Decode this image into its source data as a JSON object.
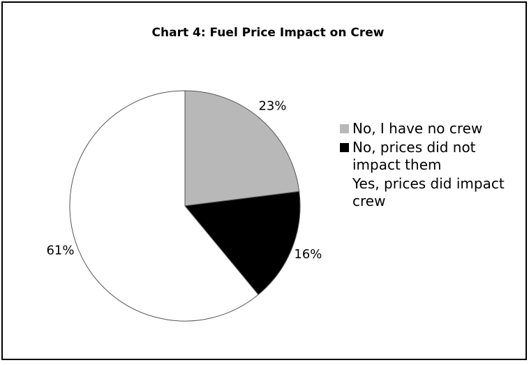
{
  "chart_data": {
    "type": "pie",
    "title": "Chart 4:  Fuel Price Impact on Crew",
    "categories": [
      "No, I have no crew",
      "No, prices did not impact them",
      "Yes, prices did impact crew"
    ],
    "values": [
      23,
      16,
      61
    ],
    "value_labels": [
      "23%",
      "16%",
      "61%"
    ],
    "colors": [
      "#b8b8b8",
      "#000000",
      "#ffffff"
    ],
    "legend": "right"
  }
}
